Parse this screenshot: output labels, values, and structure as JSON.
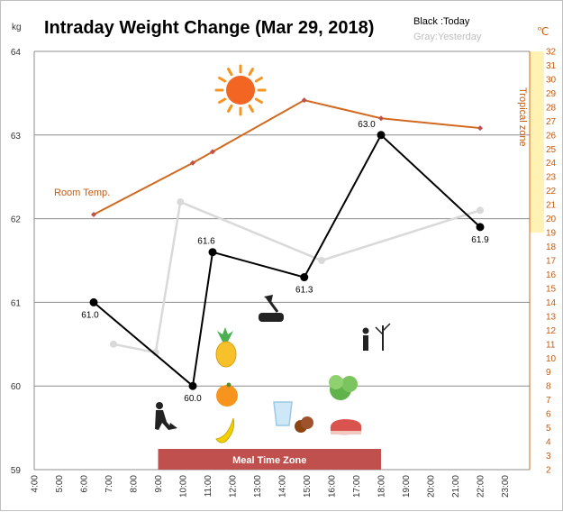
{
  "chart_data": {
    "type": "line",
    "title": "Intraday Weight Change (Mar 29, 2018)",
    "legend": {
      "today": "Black :Today",
      "yesterday": "Gray:Yesterday",
      "placement": "top-right"
    },
    "y_left": {
      "unit": "kg",
      "range": [
        59,
        64
      ],
      "ticks": [
        "59",
        "60",
        "61",
        "62",
        "63",
        "64"
      ]
    },
    "y_right": {
      "unit": "℃",
      "range": [
        2,
        32
      ],
      "ticks": [
        "2",
        "3",
        "4",
        "5",
        "6",
        "7",
        "8",
        "9",
        "10",
        "11",
        "12",
        "13",
        "14",
        "15",
        "16",
        "17",
        "18",
        "19",
        "20",
        "21",
        "22",
        "23",
        "24",
        "25",
        "26",
        "27",
        "28",
        "29",
        "30",
        "31",
        "32"
      ]
    },
    "x": {
      "range": [
        4,
        24
      ],
      "ticks": [
        "4:00",
        "5:00",
        "6:00",
        "7:00",
        "8:00",
        "9:00",
        "10:00",
        "11:00",
        "12:00",
        "13:00",
        "14:00",
        "15:00",
        "16:00",
        "17:00",
        "18:00",
        "19:00",
        "20:00",
        "21:00",
        "22:00",
        "23:00"
      ]
    },
    "grid": true,
    "series": [
      {
        "name": "Today",
        "color": "#000000",
        "axis": "left",
        "points": [
          {
            "x": 6.4,
            "y": 61.0,
            "label": "61.0"
          },
          {
            "x": 10.4,
            "y": 60.0,
            "label": "60.0"
          },
          {
            "x": 11.2,
            "y": 61.6,
            "label": "61.6"
          },
          {
            "x": 14.9,
            "y": 61.3,
            "label": "61.3"
          },
          {
            "x": 18.0,
            "y": 63.0,
            "label": "63.0"
          },
          {
            "x": 22.0,
            "y": 61.9,
            "label": "61.9"
          }
        ]
      },
      {
        "name": "Yesterday",
        "color": "#d9d9d9",
        "axis": "left",
        "points": [
          {
            "x": 7.2,
            "y": 60.5
          },
          {
            "x": 8.9,
            "y": 60.4
          },
          {
            "x": 9.9,
            "y": 62.2
          },
          {
            "x": 15.6,
            "y": 61.5
          },
          {
            "x": 22.0,
            "y": 62.1
          }
        ]
      },
      {
        "name": "Room Temp.",
        "color": "#d2691e",
        "axis": "right",
        "points": [
          {
            "x": 6.4,
            "y": 20.3
          },
          {
            "x": 10.4,
            "y": 24.0
          },
          {
            "x": 11.2,
            "y": 24.8
          },
          {
            "x": 14.9,
            "y": 28.5
          },
          {
            "x": 18.0,
            "y": 27.2
          },
          {
            "x": 22.0,
            "y": 26.5
          }
        ]
      }
    ],
    "annotations": {
      "tropical_zone": "Tropical zone",
      "tropical_range": [
        19,
        32
      ],
      "meal_time_zone": "Meal Time Zone",
      "meal_time_range": [
        9,
        18
      ],
      "room_temp": "Room Temp."
    }
  },
  "colors": {
    "today": "#000000",
    "yesterday": "#d9d9d9",
    "temp": "#d2691e",
    "tropical": "#fff2b2",
    "meal": "#c0504d",
    "legend_gray": "#bfbfbf"
  }
}
